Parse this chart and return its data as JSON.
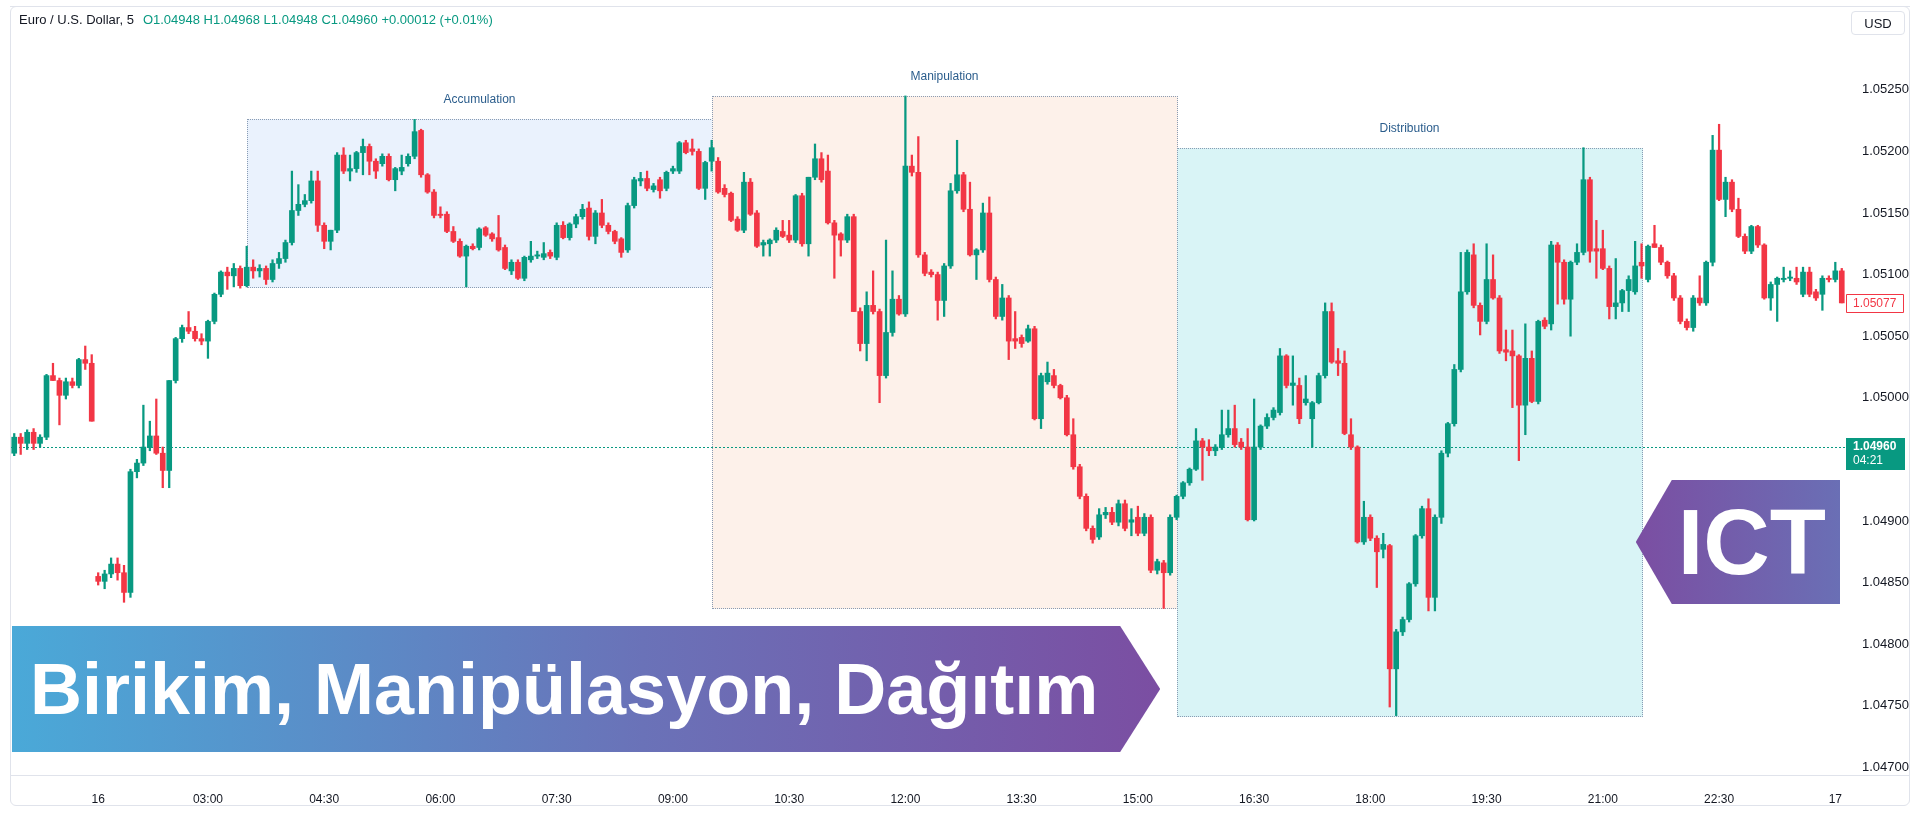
{
  "chart_data": {
    "type": "candlestick",
    "title": "Birikim, Manipülasyon, Dağıtım",
    "subtitle": "ICT",
    "ylabel": "USD",
    "annotations": [
      "Euro / U.S. Dollar, 5",
      "O1.04948 H1.04968 L1.04948 C1.04960 +0.00012 (+0.01%)",
      "Accumulation",
      "Manipulation",
      "Distribution",
      "1.05077"
    ],
    "categories": [
      null,
      null,
      null,
      null,
      null,
      null,
      null,
      null,
      null,
      null,
      null,
      null,
      null,
      "16",
      null,
      null,
      null,
      null,
      null,
      null,
      null,
      null,
      null,
      null,
      null,
      null,
      null,
      null,
      null,
      null,
      "03:00",
      null,
      null,
      null,
      null,
      null,
      null,
      null,
      null,
      null,
      null,
      null,
      null,
      null,
      null,
      null,
      null,
      null,
      "04:30",
      null,
      null,
      null,
      null,
      null,
      null,
      null,
      null,
      null,
      null,
      null,
      null,
      null,
      null,
      null,
      null,
      null,
      "06:00",
      null,
      null,
      null,
      null,
      null,
      null,
      null,
      null,
      null,
      null,
      null,
      null,
      null,
      null,
      null,
      null,
      null,
      "07:30",
      null,
      null,
      null,
      null,
      null,
      null,
      null,
      null,
      null,
      null,
      null,
      null,
      null,
      null,
      null,
      null,
      null,
      "09:00",
      null,
      null,
      null,
      null,
      null,
      null,
      null,
      null,
      null,
      null,
      null,
      null,
      null,
      null,
      null,
      null,
      null,
      "10:30",
      null,
      null,
      null,
      null,
      null,
      null,
      null,
      null,
      null,
      null,
      null,
      null,
      null,
      null,
      null,
      null,
      null,
      "12:00",
      null,
      null,
      null,
      null,
      null,
      null,
      null,
      null,
      null,
      null,
      null,
      null,
      null,
      null,
      null,
      null,
      null,
      "13:30",
      null,
      null,
      null,
      null,
      null,
      null,
      null,
      null,
      null,
      null,
      null,
      null,
      null,
      null,
      null,
      null,
      null,
      "15:00",
      null,
      null,
      null,
      null,
      null,
      null,
      null,
      null,
      null,
      null,
      null,
      null,
      null,
      null,
      null,
      null,
      null,
      "16:30",
      null,
      null,
      null,
      null,
      null,
      null,
      null,
      null,
      null,
      null,
      null,
      null,
      null,
      null,
      null,
      null,
      null,
      "18:00",
      null,
      null,
      null,
      null,
      null,
      null,
      null,
      null,
      null,
      null,
      null,
      null,
      null,
      null,
      null,
      null,
      null,
      "19:30",
      null,
      null,
      null,
      null,
      null,
      null,
      null,
      null,
      null,
      null,
      null,
      null,
      null,
      null,
      null,
      null,
      null,
      "21:00",
      null,
      null,
      null,
      null,
      null,
      null,
      null,
      null,
      null,
      null,
      null,
      null,
      null,
      null,
      null,
      null,
      null,
      "22:30",
      null,
      null,
      null,
      null,
      null,
      null,
      null,
      null,
      null,
      null,
      null,
      null,
      null,
      null,
      null,
      null,
      null,
      "17",
      null
    ],
    "ylim": [
      1.04693,
      1.05318
    ],
    "yticks": [
      {
        "value": 1.047,
        "label": "1.04700"
      },
      {
        "value": 1.0475,
        "label": "1.04750"
      },
      {
        "value": 1.048,
        "label": "1.04800"
      },
      {
        "value": 1.0485,
        "label": "1.04850"
      },
      {
        "value": 1.049,
        "label": "1.04900"
      },
      {
        "value": 1.05,
        "label": "1.05000"
      },
      {
        "value": 1.0505,
        "label": "1.05050"
      },
      {
        "value": 1.051,
        "label": "1.05100"
      },
      {
        "value": 1.0515,
        "label": "1.05150"
      },
      {
        "value": 1.052,
        "label": "1.05200"
      },
      {
        "value": 1.0525,
        "label": "1.05250"
      }
    ],
    "ref_lines": [
      {
        "axis": "y",
        "value": 1.0496,
        "label": "1.04960\n04:21",
        "color": "#089981",
        "line_style": "dotted"
      }
    ],
    "ohlc": [
      [
        1.04955,
        1.04971,
        1.04953,
        1.04968
      ],
      [
        1.04968,
        1.04971,
        1.04954,
        1.04963
      ],
      [
        1.04963,
        1.04974,
        1.04958,
        1.04972
      ],
      [
        1.04972,
        1.04975,
        1.04958,
        1.04963
      ],
      [
        1.04963,
        1.0497,
        1.0496,
        1.04968
      ],
      [
        1.04968,
        1.05019,
        1.04966,
        1.05018
      ],
      [
        1.05018,
        1.05028,
        1.05014,
        1.05014
      ],
      [
        1.05014,
        1.05016,
        1.04978,
        1.05002
      ],
      [
        1.05002,
        1.05016,
        1.04999,
        1.05013
      ],
      [
        1.05013,
        1.05016,
        1.05008,
        1.0501
      ],
      [
        1.0501,
        1.05032,
        1.05008,
        1.05031
      ],
      [
        1.05031,
        1.05042,
        1.05023,
        1.05028
      ],
      [
        1.05028,
        1.05035,
        1.04981,
        1.04981
      ],
      [
        1.04855,
        1.04858,
        1.04848,
        1.04851
      ],
      [
        1.04851,
        1.0486,
        1.04845,
        1.04857
      ],
      [
        1.04857,
        1.0487,
        1.04854,
        1.04865
      ],
      [
        1.04865,
        1.0487,
        1.04852,
        1.04858
      ],
      [
        1.04858,
        1.04864,
        1.04834,
        1.04842
      ],
      [
        1.04842,
        1.04942,
        1.04838,
        1.0494
      ],
      [
        1.0494,
        1.0495,
        1.04935,
        1.04947
      ],
      [
        1.04947,
        1.04994,
        1.04945,
        1.0496
      ],
      [
        1.0496,
        1.04981,
        1.04957,
        1.04969
      ],
      [
        1.04969,
        1.04999,
        1.04954,
        1.04955
      ],
      [
        1.04955,
        1.0496,
        1.04927,
        1.04941
      ],
      [
        1.04941,
        1.05014,
        1.04927,
        1.05014
      ],
      [
        1.05014,
        1.05049,
        1.05012,
        1.05048
      ],
      [
        1.05048,
        1.05059,
        1.05045,
        1.05057
      ],
      [
        1.05057,
        1.0507,
        1.05052,
        1.05054
      ],
      [
        1.05054,
        1.05058,
        1.05046,
        1.05048
      ],
      [
        1.05048,
        1.05052,
        1.05043,
        1.05046
      ],
      [
        1.05046,
        1.05063,
        1.05032,
        1.05062
      ],
      [
        1.05062,
        1.05085,
        1.0506,
        1.05084
      ],
      [
        1.05084,
        1.05103,
        1.05082,
        1.05102
      ],
      [
        1.05102,
        1.05106,
        1.05088,
        1.05099
      ],
      [
        1.05099,
        1.05109,
        1.0509,
        1.05105
      ],
      [
        1.05105,
        1.05107,
        1.05089,
        1.05091
      ],
      [
        1.05091,
        1.05123,
        1.0509,
        1.05106
      ],
      [
        1.05106,
        1.05112,
        1.05097,
        1.05103
      ],
      [
        1.05103,
        1.05108,
        1.05098,
        1.05105
      ],
      [
        1.05105,
        1.05107,
        1.05092,
        1.05096
      ],
      [
        1.05096,
        1.05112,
        1.05094,
        1.05109
      ],
      [
        1.05109,
        1.05118,
        1.05105,
        1.05113
      ],
      [
        1.05113,
        1.05128,
        1.0511,
        1.05126
      ],
      [
        1.05126,
        1.05184,
        1.05124,
        1.05152
      ],
      [
        1.05152,
        1.05173,
        1.05148,
        1.05157
      ],
      [
        1.05157,
        1.05165,
        1.05155,
        1.0516
      ],
      [
        1.0516,
        1.05184,
        1.05158,
        1.05176
      ],
      [
        1.05176,
        1.05184,
        1.05135,
        1.0514
      ],
      [
        1.0514,
        1.05142,
        1.05121,
        1.05127
      ],
      [
        1.05127,
        1.05136,
        1.0512,
        1.05136
      ],
      [
        1.05136,
        1.05199,
        1.05134,
        1.05197
      ],
      [
        1.05197,
        1.05203,
        1.05182,
        1.05184
      ],
      [
        1.05184,
        1.05197,
        1.05176,
        1.05186
      ],
      [
        1.05186,
        1.052,
        1.05183,
        1.05199
      ],
      [
        1.05199,
        1.0521,
        1.05181,
        1.05204
      ],
      [
        1.05204,
        1.05206,
        1.05181,
        1.05192
      ],
      [
        1.05192,
        1.05194,
        1.05178,
        1.05184
      ],
      [
        1.0519,
        1.05198,
        1.05188,
        1.05196
      ],
      [
        1.05196,
        1.05198,
        1.05176,
        1.05177
      ],
      [
        1.05177,
        1.05187,
        1.05168,
        1.05186
      ],
      [
        1.05184,
        1.05197,
        1.05181,
        1.05187
      ],
      [
        1.0519,
        1.05198,
        1.05188,
        1.05196
      ],
      [
        1.05196,
        1.05226,
        1.05194,
        1.05216
      ],
      [
        1.05217,
        1.05218,
        1.05179,
        1.05181
      ],
      [
        1.05181,
        1.05182,
        1.05166,
        1.05167
      ],
      [
        1.05167,
        1.05169,
        1.05146,
        1.05148
      ],
      [
        1.05149,
        1.05155,
        1.05146,
        1.05148
      ],
      [
        1.05149,
        1.05151,
        1.05134,
        1.05135
      ],
      [
        1.05135,
        1.05139,
        1.05126,
        1.05127
      ],
      [
        1.05127,
        1.05129,
        1.05114,
        1.05115
      ],
      [
        1.05115,
        1.05124,
        1.0509,
        1.05123
      ],
      [
        1.05123,
        1.05125,
        1.0512,
        1.05121
      ],
      [
        1.05122,
        1.05138,
        1.0512,
        1.05137
      ],
      [
        1.05138,
        1.05139,
        1.05131,
        1.05132
      ],
      [
        1.05133,
        1.05134,
        1.05127,
        1.05129
      ],
      [
        1.0513,
        1.05148,
        1.05119,
        1.0512
      ],
      [
        1.05122,
        1.05124,
        1.05104,
        1.05105
      ],
      [
        1.05103,
        1.05112,
        1.051,
        1.0511
      ],
      [
        1.0511,
        1.05112,
        1.05096,
        1.05097
      ],
      [
        1.05097,
        1.05115,
        1.05095,
        1.05114
      ],
      [
        1.05112,
        1.05127,
        1.0511,
        1.05115
      ],
      [
        1.05115,
        1.05119,
        1.05113,
        1.05116
      ],
      [
        1.05114,
        1.05126,
        1.05112,
        1.05117
      ],
      [
        1.05118,
        1.0512,
        1.05113,
        1.05115
      ],
      [
        1.05114,
        1.05142,
        1.05112,
        1.0514
      ],
      [
        1.0514,
        1.05143,
        1.05129,
        1.0513
      ],
      [
        1.0513,
        1.05142,
        1.05128,
        1.05141
      ],
      [
        1.05141,
        1.05149,
        1.05138,
        1.05147
      ],
      [
        1.05147,
        1.05157,
        1.05145,
        1.05153
      ],
      [
        1.05154,
        1.05159,
        1.05128,
        1.05131
      ],
      [
        1.05131,
        1.05152,
        1.05125,
        1.0515
      ],
      [
        1.0515,
        1.05161,
        1.05138,
        1.0514
      ],
      [
        1.0514,
        1.05142,
        1.05133,
        1.05135
      ],
      [
        1.05135,
        1.05136,
        1.05125,
        1.05127
      ],
      [
        1.05129,
        1.0513,
        1.05114,
        1.05118
      ],
      [
        1.0512,
        1.05158,
        1.05118,
        1.05156
      ],
      [
        1.05156,
        1.05179,
        1.05154,
        1.05177
      ],
      [
        1.05176,
        1.05183,
        1.05172,
        1.05178
      ],
      [
        1.05178,
        1.05184,
        1.05168,
        1.0517
      ],
      [
        1.05169,
        1.05174,
        1.05167,
        1.05172
      ],
      [
        1.05177,
        1.05179,
        1.05162,
        1.05168
      ],
      [
        1.0517,
        1.05184,
        1.05168,
        1.05183
      ],
      [
        1.05184,
        1.05188,
        1.05182,
        1.05186
      ],
      [
        1.05184,
        1.05208,
        1.05182,
        1.05207
      ],
      [
        1.05207,
        1.05209,
        1.05198,
        1.05199
      ],
      [
        1.05202,
        1.0521,
        1.05197,
        1.052
      ],
      [
        1.052,
        1.05202,
        1.05169,
        1.0517
      ],
      [
        1.0517,
        1.05192,
        1.05161,
        1.05191
      ],
      [
        1.05192,
        1.05209,
        1.05184,
        1.05203
      ],
      [
        1.05192,
        1.05195,
        1.05166,
        1.05167
      ],
      [
        1.0517,
        1.05173,
        1.05163,
        1.05165
      ],
      [
        1.05166,
        1.05167,
        1.05143,
        1.05144
      ],
      [
        1.05145,
        1.05147,
        1.05135,
        1.05136
      ],
      [
        1.05136,
        1.05183,
        1.05134,
        1.05175
      ],
      [
        1.05175,
        1.05178,
        1.05148,
        1.05149
      ],
      [
        1.0515,
        1.05152,
        1.05122,
        1.05123
      ],
      [
        1.05124,
        1.05128,
        1.05115,
        1.05126
      ],
      [
        1.05125,
        1.05129,
        1.05115,
        1.05128
      ],
      [
        1.05128,
        1.05138,
        1.05126,
        1.05136
      ],
      [
        1.05135,
        1.05144,
        1.0513,
        1.05131
      ],
      [
        1.05132,
        1.05144,
        1.05126,
        1.05128
      ],
      [
        1.05128,
        1.05165,
        1.05126,
        1.05164
      ],
      [
        1.05164,
        1.05166,
        1.05123,
        1.05125
      ],
      [
        1.05125,
        1.05179,
        1.05115,
        1.05179
      ],
      [
        1.05179,
        1.05206,
        1.05177,
        1.05194
      ],
      [
        1.05194,
        1.05199,
        1.05175,
        1.05177
      ],
      [
        1.05184,
        1.05197,
        1.05141,
        1.05142
      ],
      [
        1.05142,
        1.05144,
        1.05097,
        1.05132
      ],
      [
        1.05133,
        1.05134,
        1.05115,
        1.05128
      ],
      [
        1.05128,
        1.05149,
        1.05126,
        1.05147
      ],
      [
        1.05147,
        1.05149,
        1.0507,
        1.0507
      ],
      [
        1.0507,
        1.05073,
        1.05038,
        1.05044
      ],
      [
        1.05044,
        1.05086,
        1.0503,
        1.05075
      ],
      [
        1.05075,
        1.05103,
        1.05068,
        1.0507
      ],
      [
        1.0507,
        1.05072,
        1.04996,
        1.05018
      ],
      [
        1.05018,
        1.05128,
        1.05016,
        1.05053
      ],
      [
        1.05053,
        1.05103,
        1.0505,
        1.0508
      ],
      [
        1.0508,
        1.05083,
        1.05067,
        1.05068
      ],
      [
        1.05068,
        1.05245,
        1.05066,
        1.05188
      ],
      [
        1.05188,
        1.05197,
        1.0518,
        1.05183
      ],
      [
        1.05183,
        1.05212,
        1.05114,
        1.05116
      ],
      [
        1.05116,
        1.05118,
        1.05099,
        1.05101
      ],
      [
        1.05102,
        1.05104,
        1.05098,
        1.051
      ],
      [
        1.051,
        1.05102,
        1.05063,
        1.05079
      ],
      [
        1.05079,
        1.05109,
        1.05066,
        1.05107
      ],
      [
        1.05107,
        1.05174,
        1.05105,
        1.05168
      ],
      [
        1.05168,
        1.05209,
        1.05166,
        1.05181
      ],
      [
        1.05181,
        1.05183,
        1.05151,
        1.05153
      ],
      [
        1.05153,
        1.05175,
        1.05115,
        1.05116
      ],
      [
        1.05116,
        1.05121,
        1.05096,
        1.0512
      ],
      [
        1.0512,
        1.05158,
        1.05118,
        1.0515
      ],
      [
        1.0515,
        1.05163,
        1.05094,
        1.05096
      ],
      [
        1.05096,
        1.05098,
        1.05064,
        1.05066
      ],
      [
        1.05066,
        1.05092,
        1.05063,
        1.05081
      ],
      [
        1.05081,
        1.05083,
        1.05031,
        1.05046
      ],
      [
        1.05048,
        1.0507,
        1.0504,
        1.05046
      ],
      [
        1.05049,
        1.05051,
        1.05041,
        1.05044
      ],
      [
        1.05046,
        1.05059,
        1.05045,
        1.05056
      ],
      [
        1.05056,
        1.05058,
        1.04982,
        1.04983
      ],
      [
        1.04983,
        1.0502,
        1.04975,
        1.05018
      ],
      [
        1.05013,
        1.05029,
        1.05011,
        1.0502
      ],
      [
        1.05018,
        1.05023,
        1.05008,
        1.0501
      ],
      [
        1.0501,
        1.05011,
        1.04999,
        1.05
      ],
      [
        1.05,
        1.05002,
        1.04969,
        1.0497
      ],
      [
        1.0497,
        1.04983,
        1.04942,
        1.04944
      ],
      [
        1.04944,
        1.04946,
        1.04918,
        1.0492
      ],
      [
        1.0492,
        1.04922,
        1.04892,
        1.04894
      ],
      [
        1.04894,
        1.04896,
        1.04882,
        1.04885
      ],
      [
        1.04887,
        1.0491,
        1.04885,
        1.04905
      ],
      [
        1.04905,
        1.04911,
        1.04902,
        1.04907
      ],
      [
        1.04907,
        1.04911,
        1.04897,
        1.04899
      ],
      [
        1.04899,
        1.04917,
        1.04896,
        1.04914
      ],
      [
        1.04914,
        1.04917,
        1.04892,
        1.04894
      ],
      [
        1.04899,
        1.0491,
        1.04888,
        1.04901
      ],
      [
        1.04903,
        1.04912,
        1.04888,
        1.0489
      ],
      [
        1.0489,
        1.04906,
        1.04888,
        1.04903
      ],
      [
        1.04903,
        1.04905,
        1.04858,
        1.0486
      ],
      [
        1.0486,
        1.04869,
        1.04857,
        1.04867
      ],
      [
        1.04866,
        1.04868,
        1.04829,
        1.04858
      ],
      [
        1.04858,
        1.04905,
        1.04856,
        1.04903
      ],
      [
        1.04903,
        1.04921,
        1.04901,
        1.0492
      ],
      [
        1.0492,
        1.04932,
        1.04918,
        1.04931
      ],
      [
        1.04931,
        1.04943,
        1.04929,
        1.04942
      ],
      [
        1.04942,
        1.04975,
        1.04941,
        1.04965
      ],
      [
        1.04965,
        1.04967,
        1.04933,
        1.0496
      ],
      [
        1.0496,
        1.04966,
        1.04953,
        1.04957
      ],
      [
        1.04957,
        1.04962,
        1.04953,
        1.0496
      ],
      [
        1.0496,
        1.0499,
        1.04958,
        1.0497
      ],
      [
        1.0497,
        1.0499,
        1.04968,
        1.04975
      ],
      [
        1.04975,
        1.04994,
        1.0496,
        1.04962
      ],
      [
        1.04964,
        1.04967,
        1.04958,
        1.0496
      ],
      [
        1.0496,
        1.04975,
        1.049,
        1.04901
      ],
      [
        1.04901,
        1.04999,
        1.049,
        1.0496
      ],
      [
        1.0496,
        1.04978,
        1.04958,
        1.04977
      ],
      [
        1.04977,
        1.04987,
        1.04975,
        1.04984
      ],
      [
        1.04984,
        1.04992,
        1.04982,
        1.0499
      ],
      [
        1.04988,
        1.0504,
        1.04986,
        1.05034
      ],
      [
        1.05034,
        1.05035,
        1.05008,
        1.0501
      ],
      [
        1.0501,
        1.05034,
        1.04994,
        1.05012
      ],
      [
        1.0501,
        1.05016,
        1.04979,
        1.04983
      ],
      [
        1.04996,
        1.05018,
        1.04994,
        1.04999
      ],
      [
        1.04983,
        1.04997,
        1.0496,
        1.04996
      ],
      [
        1.04996,
        1.0502,
        1.04995,
        1.05018
      ],
      [
        1.05018,
        1.05077,
        1.05016,
        1.0507
      ],
      [
        1.0507,
        1.05077,
        1.05028,
        1.05029
      ],
      [
        1.0503,
        1.0504,
        1.05018,
        1.05028
      ],
      [
        1.05028,
        1.05038,
        1.0497,
        1.04971
      ],
      [
        1.0497,
        1.04983,
        1.04958,
        1.0496
      ],
      [
        1.0496,
        1.04961,
        1.04882,
        1.04883
      ],
      [
        1.04883,
        1.04916,
        1.04881,
        1.04903
      ],
      [
        1.04903,
        1.04905,
        1.04884,
        1.04886
      ],
      [
        1.04886,
        1.04888,
        1.04846,
        1.04875
      ],
      [
        1.04877,
        1.0489,
        1.0487,
        1.04881
      ],
      [
        1.0488,
        1.04881,
        1.04749,
        1.0478
      ],
      [
        1.0478,
        1.04812,
        1.04742,
        1.0481
      ],
      [
        1.0481,
        1.04822,
        1.04807,
        1.0482
      ],
      [
        1.0482,
        1.0485,
        1.04818,
        1.04849
      ],
      [
        1.04849,
        1.04889,
        1.04847,
        1.04888
      ],
      [
        1.04888,
        1.04912,
        1.04886,
        1.0491
      ],
      [
        1.0491,
        1.04918,
        1.04827,
        1.04838
      ],
      [
        1.04838,
        1.04905,
        1.04827,
        1.04903
      ],
      [
        1.04903,
        1.04957,
        1.04898,
        1.04955
      ],
      [
        1.04955,
        1.0498,
        1.04952,
        1.04979
      ],
      [
        1.04979,
        1.05027,
        1.04977,
        1.05023
      ],
      [
        1.05023,
        1.05118,
        1.05021,
        1.05086
      ],
      [
        1.05086,
        1.0512,
        1.05084,
        1.05118
      ],
      [
        1.05116,
        1.05125,
        1.05073,
        1.05075
      ],
      [
        1.05075,
        1.05077,
        1.05051,
        1.05062
      ],
      [
        1.05062,
        1.05125,
        1.0506,
        1.05096
      ],
      [
        1.05096,
        1.05116,
        1.0508,
        1.05081
      ],
      [
        1.05081,
        1.05083,
        1.05036,
        1.05038
      ],
      [
        1.05039,
        1.05055,
        1.0503,
        1.05037
      ],
      [
        1.05038,
        1.05055,
        1.04992,
        1.05034
      ],
      [
        1.05034,
        1.05035,
        1.04949,
        1.04994
      ],
      [
        1.04994,
        1.0506,
        1.0497,
        1.05032
      ],
      [
        1.05032,
        1.05038,
        1.04996,
        1.04997
      ],
      [
        1.04997,
        1.05063,
        1.04995,
        1.05062
      ],
      [
        1.05063,
        1.05065,
        1.05056,
        1.05058
      ],
      [
        1.0506,
        1.05127,
        1.05055,
        1.05124
      ],
      [
        1.05124,
        1.05126,
        1.05076,
        1.0511
      ],
      [
        1.0511,
        1.05112,
        1.05076,
        1.0508
      ],
      [
        1.0508,
        1.05111,
        1.0505,
        1.0511
      ],
      [
        1.0511,
        1.05125,
        1.05108,
        1.05118
      ],
      [
        1.05118,
        1.05203,
        1.05116,
        1.05177
      ],
      [
        1.05177,
        1.05179,
        1.0511,
        1.05119
      ],
      [
        1.05121,
        1.05144,
        1.05097,
        1.05119
      ],
      [
        1.05121,
        1.05136,
        1.05104,
        1.05105
      ],
      [
        1.05105,
        1.05107,
        1.05064,
        1.05074
      ],
      [
        1.05074,
        1.05113,
        1.05064,
        1.05077
      ],
      [
        1.05077,
        1.05088,
        1.0507,
        1.05087
      ],
      [
        1.05087,
        1.05099,
        1.0507,
        1.05096
      ],
      [
        1.05086,
        1.05127,
        1.05084,
        1.05107
      ],
      [
        1.0511,
        1.05125,
        1.05097,
        1.05107
      ],
      [
        1.05096,
        1.05124,
        1.05094,
        1.05123
      ],
      [
        1.05125,
        1.0514,
        1.05122,
        1.05122
      ],
      [
        1.05122,
        1.05124,
        1.05108,
        1.0511
      ],
      [
        1.0511,
        1.05111,
        1.05097,
        1.05099
      ],
      [
        1.05099,
        1.05101,
        1.05079,
        1.05081
      ],
      [
        1.05081,
        1.05083,
        1.0506,
        1.05062
      ],
      [
        1.05062,
        1.05064,
        1.05055,
        1.05057
      ],
      [
        1.05057,
        1.05083,
        1.05054,
        1.05081
      ],
      [
        1.05081,
        1.05099,
        1.05075,
        1.05077
      ],
      [
        1.05077,
        1.05111,
        1.05075,
        1.0511
      ],
      [
        1.0511,
        1.05213,
        1.05107,
        1.05201
      ],
      [
        1.05201,
        1.05222,
        1.0516,
        1.05161
      ],
      [
        1.05161,
        1.05179,
        1.05147,
        1.05175
      ],
      [
        1.05175,
        1.05177,
        1.05151,
        1.05153
      ],
      [
        1.05153,
        1.05162,
        1.0513,
        1.05131
      ],
      [
        1.05131,
        1.05133,
        1.05117,
        1.05119
      ],
      [
        1.05119,
        1.0514,
        1.05117,
        1.05139
      ],
      [
        1.05139,
        1.0514,
        1.05122,
        1.05124
      ],
      [
        1.05124,
        1.05125,
        1.0508,
        1.05081
      ],
      [
        1.05081,
        1.05094,
        1.05071,
        1.05092
      ],
      [
        1.05092,
        1.05098,
        1.05062,
        1.05097
      ],
      [
        1.05096,
        1.05106,
        1.05094,
        1.05097
      ],
      [
        1.05097,
        1.05103,
        1.05095,
        1.05098
      ],
      [
        1.05097,
        1.05106,
        1.05092,
        1.05094
      ],
      [
        1.05084,
        1.05106,
        1.05082,
        1.05102
      ],
      [
        1.05102,
        1.05106,
        1.05082,
        1.05084
      ],
      [
        1.05086,
        1.05088,
        1.05079,
        1.05081
      ],
      [
        1.05084,
        1.05099,
        1.05071,
        1.05097
      ],
      [
        1.05097,
        1.05099,
        1.05094,
        1.05096
      ],
      [
        1.05096,
        1.0511,
        1.05094,
        1.05103
      ],
      [
        1.05103,
        1.05105,
        1.05077,
        1.05077
      ]
    ],
    "colors": [
      "#089981",
      "#f23645",
      "#089981",
      "#f23645",
      "#089981",
      "#089981",
      "#f23645",
      "#f23645",
      "#089981",
      "#f23645",
      "#089981",
      "#f23645",
      "#f23645",
      "#f23645",
      "#089981",
      "#089981",
      "#f23645",
      "#f23645",
      "#089981",
      "#089981",
      "#089981",
      "#089981",
      "#f23645",
      "#f23645",
      "#089981",
      "#089981",
      "#089981",
      "#f23645",
      "#f23645",
      "#f23645",
      "#089981",
      "#089981",
      "#089981",
      "#f23645",
      "#089981",
      "#f23645",
      "#089981",
      "#f23645",
      "#089981",
      "#f23645",
      "#089981",
      "#089981",
      "#089981",
      "#089981",
      "#089981",
      "#089981",
      "#089981",
      "#f23645",
      "#f23645",
      "#089981",
      "#089981",
      "#f23645",
      "#089981",
      "#089981",
      "#089981",
      "#f23645",
      "#f23645",
      "#089981",
      "#f23645",
      "#089981",
      "#089981",
      "#089981",
      "#089981",
      "#f23645",
      "#f23645",
      "#f23645",
      "#f23645",
      "#f23645",
      "#f23645",
      "#f23645",
      "#089981",
      "#f23645",
      "#089981",
      "#f23645",
      "#f23645",
      "#f23645",
      "#f23645",
      "#089981",
      "#f23645",
      "#089981",
      "#089981",
      "#089981",
      "#089981",
      "#f23645",
      "#089981",
      "#f23645",
      "#089981",
      "#089981",
      "#089981",
      "#f23645",
      "#089981",
      "#f23645",
      "#f23645",
      "#f23645",
      "#f23645",
      "#089981",
      "#089981",
      "#089981",
      "#f23645",
      "#089981",
      "#f23645",
      "#089981",
      "#089981",
      "#089981",
      "#f23645",
      "#f23645",
      "#f23645",
      "#089981",
      "#089981",
      "#f23645",
      "#f23645",
      "#f23645",
      "#f23645",
      "#089981",
      "#f23645",
      "#f23645",
      "#089981",
      "#089981",
      "#089981",
      "#f23645",
      "#f23645",
      "#089981",
      "#f23645",
      "#089981",
      "#089981",
      "#f23645",
      "#f23645",
      "#f23645",
      "#f23645",
      "#089981",
      "#f23645",
      "#f23645",
      "#089981",
      "#f23645",
      "#f23645",
      "#089981",
      "#089981",
      "#f23645",
      "#089981",
      "#f23645",
      "#f23645",
      "#f23645",
      "#f23645",
      "#f23645",
      "#089981",
      "#089981",
      "#089981",
      "#f23645",
      "#f23645",
      "#089981",
      "#089981",
      "#f23645",
      "#f23645",
      "#089981",
      "#f23645",
      "#f23645",
      "#f23645",
      "#089981",
      "#f23645",
      "#089981",
      "#089981",
      "#f23645",
      "#f23645",
      "#f23645",
      "#f23645",
      "#f23645",
      "#f23645",
      "#f23645",
      "#089981",
      "#089981",
      "#f23645",
      "#089981",
      "#f23645",
      "#089981",
      "#f23645",
      "#089981",
      "#f23645",
      "#089981",
      "#f23645",
      "#089981",
      "#089981",
      "#089981",
      "#089981",
      "#089981",
      "#f23645",
      "#f23645",
      "#089981",
      "#089981",
      "#089981",
      "#f23645",
      "#f23645",
      "#f23645",
      "#089981",
      "#089981",
      "#089981",
      "#089981",
      "#089981",
      "#f23645",
      "#089981",
      "#f23645",
      "#089981",
      "#089981",
      "#089981",
      "#089981",
      "#f23645",
      "#f23645",
      "#f23645",
      "#f23645",
      "#f23645",
      "#089981",
      "#f23645",
      "#f23645",
      "#089981",
      "#f23645",
      "#089981",
      "#089981",
      "#089981",
      "#089981",
      "#089981",
      "#f23645",
      "#089981",
      "#089981",
      "#089981",
      "#089981",
      "#089981",
      "#089981",
      "#f23645",
      "#f23645",
      "#089981",
      "#f23645",
      "#f23645",
      "#f23645",
      "#f23645",
      "#f23645",
      "#089981",
      "#f23645",
      "#089981",
      "#f23645",
      "#089981",
      "#f23645",
      "#f23645",
      "#089981",
      "#089981",
      "#089981",
      "#f23645",
      "#f23645",
      "#f23645",
      "#f23645",
      "#089981",
      "#089981",
      "#089981",
      "#089981",
      "#f23645",
      "#089981",
      "#f23645",
      "#f23645",
      "#f23645",
      "#f23645",
      "#f23645",
      "#f23645",
      "#089981",
      "#f23645",
      "#089981",
      "#089981",
      "#f23645",
      "#089981",
      "#f23645",
      "#f23645",
      "#f23645",
      "#089981",
      "#f23645",
      "#f23645",
      "#089981",
      "#089981",
      "#089981",
      "#089981",
      "#f23645",
      "#089981",
      "#f23645",
      "#f23645",
      "#089981",
      "#f23645",
      "#089981",
      "#f23645"
    ]
  }
}
